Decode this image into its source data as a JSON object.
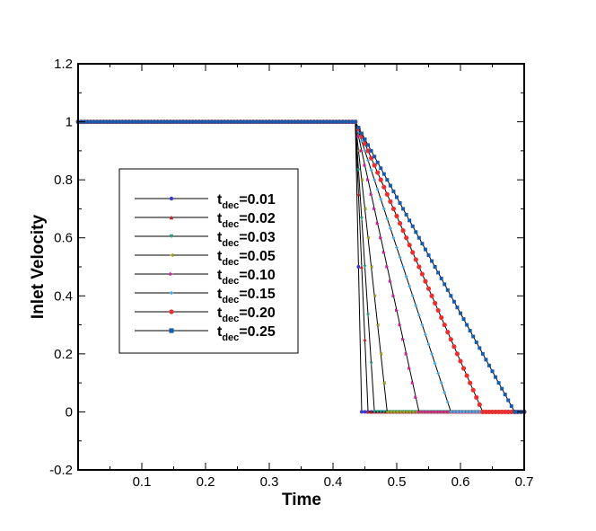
{
  "chart_data": {
    "type": "line",
    "xlabel": "Time",
    "ylabel": "Inlet Velocity",
    "xlim": [
      0,
      0.7
    ],
    "ylim": [
      -0.2,
      1.2
    ],
    "x_ticks": [
      "0.1",
      "0.2",
      "0.3",
      "0.4",
      "0.5",
      "0.6",
      "0.7"
    ],
    "y_ticks": [
      "-0.2",
      "0",
      "0.2",
      "0.4",
      "0.6",
      "0.8",
      "1",
      "1.2"
    ],
    "grid": false,
    "legend_position": "center-left",
    "line_color": "#000000",
    "decel_start": 0.435,
    "series": [
      {
        "name": "t_dec=0.01",
        "label_main": "t",
        "label_sub": "dec",
        "label_val": "=0.01",
        "t_dec": 0.01,
        "color": "#3a3ad0",
        "marker": "circle"
      },
      {
        "name": "t_dec=0.02",
        "label_main": "t",
        "label_sub": "dec",
        "label_val": "=0.02",
        "t_dec": 0.02,
        "color": "#c02020",
        "marker": "triangle"
      },
      {
        "name": "t_dec=0.03",
        "label_main": "t",
        "label_sub": "dec",
        "label_val": "=0.03",
        "t_dec": 0.03,
        "color": "#20a080",
        "marker": "triangle-down"
      },
      {
        "name": "t_dec=0.05",
        "label_main": "t",
        "label_sub": "dec",
        "label_val": "=0.05",
        "t_dec": 0.05,
        "color": "#a0a020",
        "marker": "triangle-left"
      },
      {
        "name": "t_dec=0.10",
        "label_main": "t",
        "label_sub": "dec",
        "label_val": "=0.10",
        "t_dec": 0.1,
        "color": "#d020a0",
        "marker": "triangle-right"
      },
      {
        "name": "t_dec=0.15",
        "label_main": "t",
        "label_sub": "dec",
        "label_val": "=0.15",
        "t_dec": 0.15,
        "color": "#4aa8e8",
        "marker": "diamond"
      },
      {
        "name": "t_dec=0.20",
        "label_main": "t",
        "label_sub": "dec",
        "label_val": "=0.20",
        "t_dec": 0.2,
        "color": "#e83030",
        "marker": "circle"
      },
      {
        "name": "t_dec=0.25",
        "label_main": "t",
        "label_sub": "dec",
        "label_val": "=0.25",
        "t_dec": 0.25,
        "color": "#1a5aa8",
        "marker": "square"
      }
    ]
  }
}
